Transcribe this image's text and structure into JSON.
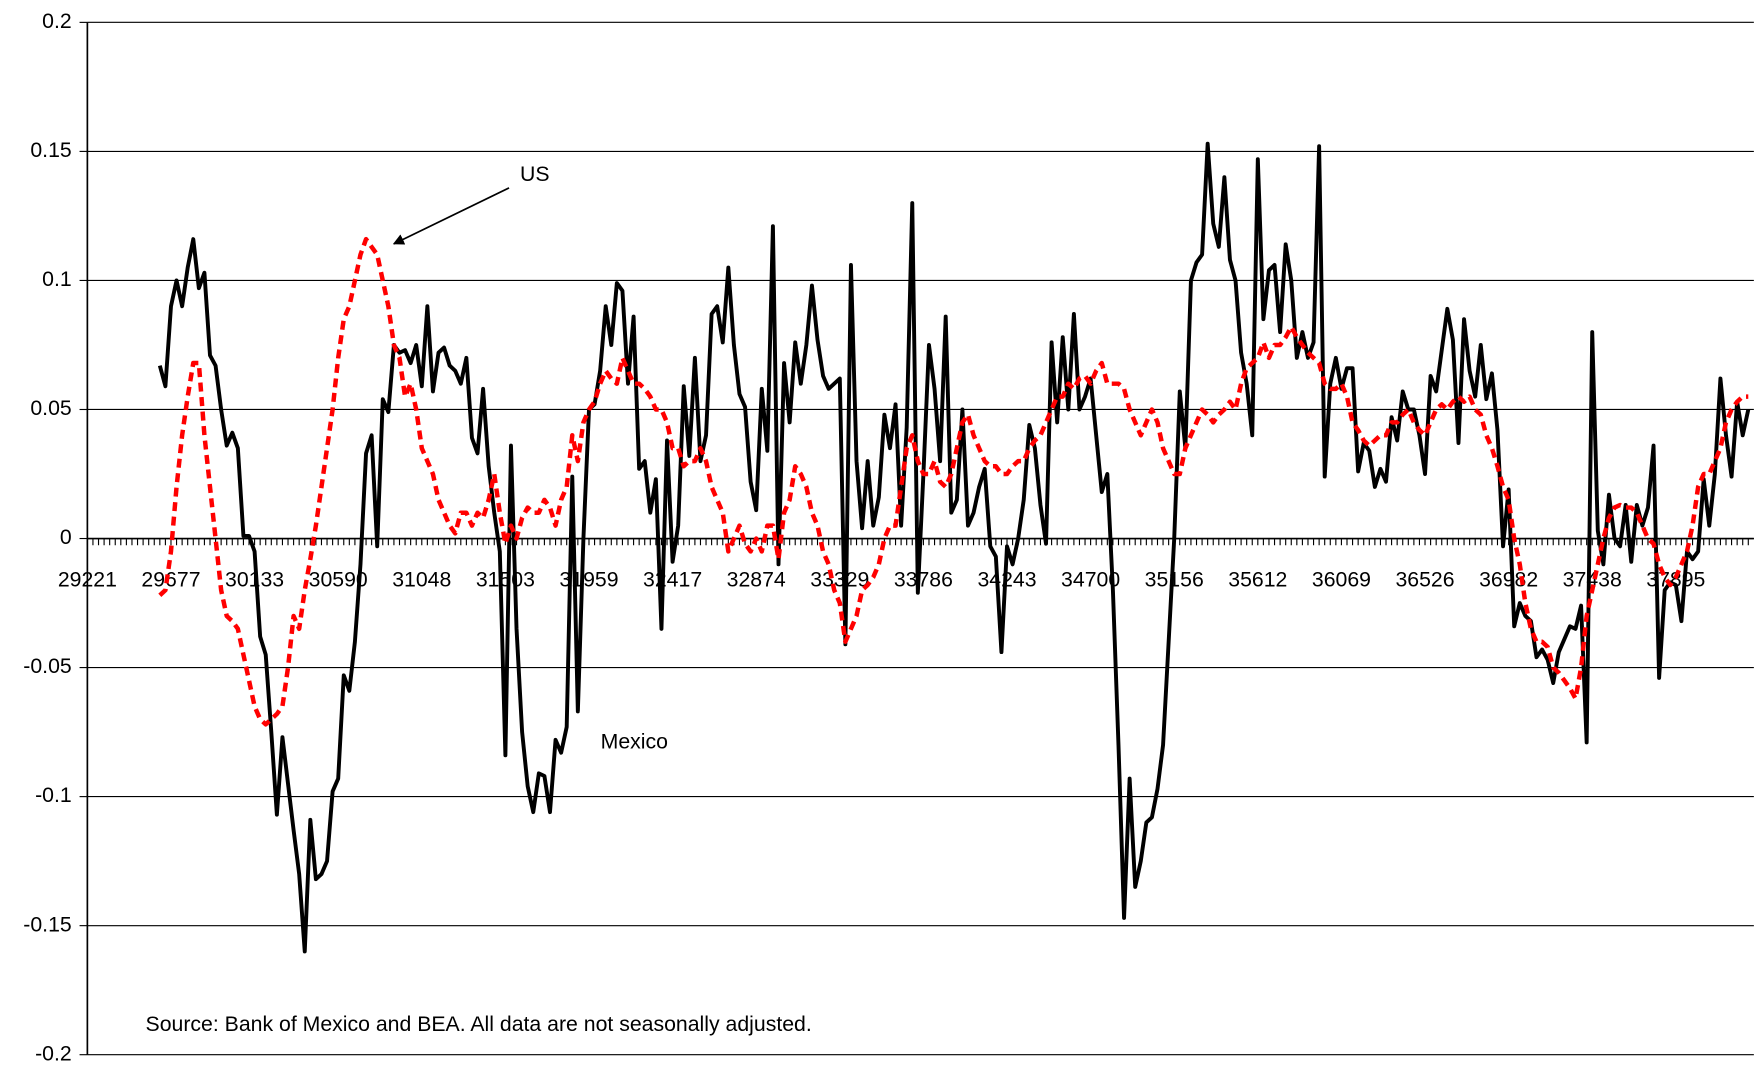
{
  "chart_data": {
    "type": "line",
    "annotations": {
      "source": "Source: Bank of Mexico and BEA. All data are not seasonally adjusted."
    },
    "categories": [
      "29221",
      null,
      null,
      null,
      null,
      null,
      null,
      null,
      null,
      null,
      null,
      null,
      null,
      null,
      null,
      "29677",
      null,
      null,
      null,
      null,
      null,
      null,
      null,
      null,
      null,
      null,
      null,
      null,
      null,
      null,
      "30133",
      null,
      null,
      null,
      null,
      null,
      null,
      null,
      null,
      null,
      null,
      null,
      null,
      null,
      null,
      "30590",
      null,
      null,
      null,
      null,
      null,
      null,
      null,
      null,
      null,
      null,
      null,
      null,
      null,
      null,
      "31048",
      null,
      null,
      null,
      null,
      null,
      null,
      null,
      null,
      null,
      null,
      null,
      null,
      null,
      null,
      "31503",
      null,
      null,
      null,
      null,
      null,
      null,
      null,
      null,
      null,
      null,
      null,
      null,
      null,
      null,
      "31959",
      null,
      null,
      null,
      null,
      null,
      null,
      null,
      null,
      null,
      null,
      null,
      null,
      null,
      null,
      "32417",
      null,
      null,
      null,
      null,
      null,
      null,
      null,
      null,
      null,
      null,
      null,
      null,
      null,
      null,
      "32874",
      null,
      null,
      null,
      null,
      null,
      null,
      null,
      null,
      null,
      null,
      null,
      null,
      null,
      null,
      "33329",
      null,
      null,
      null,
      null,
      null,
      null,
      null,
      null,
      null,
      null,
      null,
      null,
      null,
      null,
      "33786",
      null,
      null,
      null,
      null,
      null,
      null,
      null,
      null,
      null,
      null,
      null,
      null,
      null,
      null,
      "34243",
      null,
      null,
      null,
      null,
      null,
      null,
      null,
      null,
      null,
      null,
      null,
      null,
      null,
      null,
      "34700",
      null,
      null,
      null,
      null,
      null,
      null,
      null,
      null,
      null,
      null,
      null,
      null,
      null,
      null,
      "35156",
      null,
      null,
      null,
      null,
      null,
      null,
      null,
      null,
      null,
      null,
      null,
      null,
      null,
      null,
      "35612",
      null,
      null,
      null,
      null,
      null,
      null,
      null,
      null,
      null,
      null,
      null,
      null,
      null,
      null,
      "36069",
      null,
      null,
      null,
      null,
      null,
      null,
      null,
      null,
      null,
      null,
      null,
      null,
      null,
      null,
      "36526",
      null,
      null,
      null,
      null,
      null,
      null,
      null,
      null,
      null,
      null,
      null,
      null,
      null,
      null,
      "36982",
      null,
      null,
      null,
      null,
      null,
      null,
      null,
      null,
      null,
      null,
      null,
      null,
      null,
      null,
      "37438",
      null,
      null,
      null,
      null,
      null,
      null,
      null,
      null,
      null,
      null,
      null,
      null,
      null,
      null,
      "37895",
      null,
      null,
      null,
      null,
      null,
      null,
      null,
      null,
      null,
      null,
      null,
      null,
      null
    ],
    "series": [
      {
        "name": "Mexico",
        "color": "#000000",
        "dashed": false,
        "values": [
          null,
          null,
          null,
          null,
          null,
          null,
          null,
          null,
          null,
          null,
          null,
          null,
          null,
          0.067,
          0.059,
          0.09,
          0.1,
          0.09,
          0.105,
          0.116,
          0.097,
          0.103,
          0.071,
          0.067,
          0.05,
          0.036,
          0.041,
          0.035,
          0.001,
          0.001,
          -0.005,
          -0.038,
          -0.045,
          -0.075,
          -0.107,
          -0.077,
          -0.095,
          -0.113,
          -0.13,
          -0.16,
          -0.109,
          -0.132,
          -0.13,
          -0.125,
          -0.098,
          -0.093,
          -0.053,
          -0.059,
          -0.04,
          -0.01,
          0.033,
          0.04,
          -0.003,
          0.054,
          0.049,
          0.075,
          0.072,
          0.073,
          0.068,
          0.075,
          0.059,
          0.09,
          0.057,
          0.072,
          0.074,
          0.067,
          0.065,
          0.06,
          0.07,
          0.039,
          0.033,
          0.058,
          0.028,
          0.01,
          -0.005,
          -0.084,
          0.036,
          -0.035,
          -0.075,
          -0.096,
          -0.106,
          -0.091,
          -0.092,
          -0.106,
          -0.078,
          -0.083,
          -0.073,
          0.024,
          -0.067,
          0.0,
          0.05,
          0.052,
          0.065,
          0.09,
          0.075,
          0.099,
          0.096,
          0.06,
          0.086,
          0.027,
          0.03,
          0.01,
          0.023,
          -0.035,
          0.038,
          -0.009,
          0.005,
          0.059,
          0.032,
          0.07,
          0.03,
          0.04,
          0.087,
          0.09,
          0.076,
          0.105,
          0.075,
          0.056,
          0.051,
          0.022,
          0.011,
          0.058,
          0.034,
          0.121,
          -0.01,
          0.068,
          0.045,
          0.076,
          0.06,
          0.075,
          0.098,
          0.077,
          0.063,
          0.058,
          0.06,
          0.062,
          -0.041,
          0.106,
          0.03,
          0.004,
          0.03,
          0.005,
          0.016,
          0.048,
          0.035,
          0.052,
          0.005,
          0.043,
          0.13,
          -0.021,
          0.025,
          0.075,
          0.058,
          0.03,
          0.086,
          0.01,
          0.015,
          0.05,
          0.005,
          0.01,
          0.02,
          0.027,
          -0.003,
          -0.007,
          -0.044,
          -0.003,
          -0.01,
          0.0,
          0.015,
          0.044,
          0.035,
          0.013,
          -0.002,
          0.076,
          0.045,
          0.078,
          0.05,
          0.087,
          0.05,
          0.055,
          0.062,
          0.04,
          0.018,
          0.025,
          -0.02,
          -0.08,
          -0.147,
          -0.093,
          -0.135,
          -0.125,
          -0.11,
          -0.108,
          -0.097,
          -0.08,
          -0.04,
          0.0,
          0.057,
          0.035,
          0.1,
          0.107,
          0.11,
          0.153,
          0.122,
          0.113,
          0.14,
          0.108,
          0.1,
          0.072,
          0.06,
          0.04,
          0.147,
          0.085,
          0.104,
          0.106,
          0.08,
          0.114,
          0.1,
          0.07,
          0.08,
          0.07,
          0.076,
          0.152,
          0.024,
          0.06,
          0.07,
          0.058,
          0.066,
          0.066,
          0.026,
          0.037,
          0.034,
          0.02,
          0.027,
          0.022,
          0.047,
          0.038,
          0.057,
          0.05,
          0.05,
          0.04,
          0.025,
          0.063,
          0.057,
          0.073,
          0.089,
          0.077,
          0.037,
          0.085,
          0.065,
          0.055,
          0.075,
          0.054,
          0.064,
          0.042,
          -0.003,
          0.019,
          -0.034,
          -0.025,
          -0.03,
          -0.032,
          -0.046,
          -0.043,
          -0.047,
          -0.056,
          -0.044,
          -0.039,
          -0.034,
          -0.035,
          -0.026,
          -0.079,
          0.08,
          0.003,
          -0.01,
          0.017,
          0.0,
          -0.003,
          0.013,
          -0.009,
          0.013,
          0.005,
          0.012,
          0.036,
          -0.054,
          -0.02,
          -0.017,
          -0.018,
          -0.032,
          -0.005,
          -0.008,
          -0.005,
          0.023,
          0.005,
          0.025,
          0.062,
          0.04,
          0.024,
          0.053,
          0.04,
          0.05
        ]
      },
      {
        "name": "US",
        "color": "#ff0000",
        "dashed": true,
        "values": [
          null,
          null,
          null,
          null,
          null,
          null,
          null,
          null,
          null,
          null,
          null,
          null,
          null,
          -0.022,
          -0.02,
          -0.005,
          0.02,
          0.04,
          0.055,
          0.068,
          0.068,
          0.04,
          0.02,
          0.0,
          -0.02,
          -0.03,
          -0.032,
          -0.035,
          -0.045,
          -0.055,
          -0.065,
          -0.07,
          -0.072,
          -0.07,
          -0.068,
          -0.065,
          -0.05,
          -0.03,
          -0.035,
          -0.02,
          -0.008,
          0.005,
          0.02,
          0.035,
          0.05,
          0.07,
          0.085,
          0.09,
          0.1,
          0.11,
          0.116,
          0.113,
          0.11,
          0.1,
          0.09,
          0.075,
          0.07,
          0.055,
          0.06,
          0.05,
          0.035,
          0.03,
          0.025,
          0.015,
          0.01,
          0.005,
          0.002,
          0.01,
          0.01,
          0.005,
          0.01,
          0.008,
          0.015,
          0.025,
          0.01,
          -0.002,
          0.005,
          0.0,
          0.008,
          0.012,
          0.01,
          0.01,
          0.015,
          0.012,
          0.005,
          0.015,
          0.02,
          0.04,
          0.03,
          0.045,
          0.05,
          0.053,
          0.06,
          0.065,
          0.062,
          0.06,
          0.07,
          0.065,
          0.06,
          0.06,
          0.058,
          0.055,
          0.05,
          0.05,
          0.045,
          0.035,
          0.035,
          0.028,
          0.03,
          0.03,
          0.035,
          0.03,
          0.02,
          0.015,
          0.01,
          -0.005,
          0.0,
          0.005,
          -0.002,
          -0.005,
          0.0,
          -0.005,
          0.005,
          0.005,
          -0.008,
          0.01,
          0.015,
          0.028,
          0.025,
          0.02,
          0.01,
          0.005,
          -0.005,
          -0.01,
          -0.02,
          -0.025,
          -0.04,
          -0.035,
          -0.03,
          -0.02,
          -0.018,
          -0.015,
          -0.01,
          0.0,
          0.005,
          0.005,
          0.02,
          0.035,
          0.04,
          0.03,
          0.025,
          0.025,
          0.03,
          0.022,
          0.02,
          0.025,
          0.035,
          0.045,
          0.048,
          0.04,
          0.035,
          0.03,
          0.028,
          0.028,
          0.025,
          0.025,
          0.028,
          0.03,
          0.03,
          0.035,
          0.038,
          0.04,
          0.045,
          0.05,
          0.055,
          0.055,
          0.06,
          0.058,
          0.062,
          0.063,
          0.06,
          0.065,
          0.068,
          0.06,
          0.06,
          0.06,
          0.058,
          0.05,
          0.045,
          0.04,
          0.045,
          0.05,
          0.045,
          0.035,
          0.03,
          0.025,
          0.025,
          0.035,
          0.04,
          0.045,
          0.05,
          0.048,
          0.045,
          0.048,
          0.05,
          0.053,
          0.05,
          0.06,
          0.066,
          0.068,
          0.07,
          0.076,
          0.07,
          0.075,
          0.075,
          0.078,
          0.082,
          0.078,
          0.075,
          0.072,
          0.07,
          0.068,
          0.06,
          0.058,
          0.058,
          0.06,
          0.055,
          0.045,
          0.042,
          0.038,
          0.036,
          0.038,
          0.04,
          0.04,
          0.045,
          0.045,
          0.048,
          0.05,
          0.045,
          0.042,
          0.04,
          0.045,
          0.05,
          0.052,
          0.05,
          0.053,
          0.055,
          0.053,
          0.055,
          0.05,
          0.048,
          0.04,
          0.035,
          0.028,
          0.02,
          0.015,
          0.0,
          -0.01,
          -0.025,
          -0.035,
          -0.04,
          -0.04,
          -0.042,
          -0.05,
          -0.052,
          -0.055,
          -0.058,
          -0.062,
          -0.05,
          -0.03,
          -0.02,
          -0.01,
          0.0,
          0.008,
          0.012,
          0.013,
          0.012,
          0.012,
          0.01,
          0.005,
          0.0,
          -0.002,
          -0.01,
          -0.015,
          -0.018,
          -0.015,
          -0.01,
          -0.005,
          0.005,
          0.02,
          0.025,
          0.025,
          0.03,
          0.035,
          0.045,
          0.05,
          0.053,
          0.055,
          0.055
        ]
      }
    ],
    "ylim": [
      -0.2,
      0.2
    ],
    "yticks": [
      -0.2,
      -0.15,
      -0.1,
      -0.05,
      0,
      0.05,
      0.1,
      0.15,
      0.2
    ],
    "grid": true
  }
}
